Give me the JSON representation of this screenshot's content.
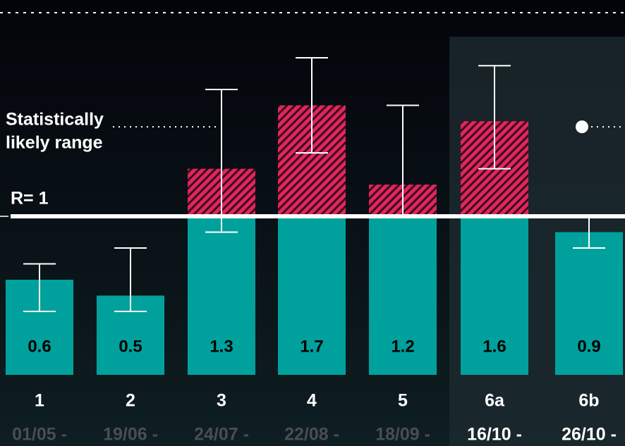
{
  "chart_data": {
    "type": "bar",
    "categories": [
      "1",
      "2",
      "3",
      "4",
      "5",
      "6a",
      "6b"
    ],
    "dates": [
      "01/05 -",
      "19/06 -",
      "24/07 -",
      "22/08 -",
      "18/09 -",
      "16/10 -",
      "26/10 -"
    ],
    "values": [
      0.6,
      0.5,
      1.3,
      1.7,
      1.2,
      1.6,
      0.9
    ],
    "ci_low": [
      0.4,
      0.4,
      0.9,
      1.4,
      1.0,
      1.3,
      0.8
    ],
    "ci_high": [
      0.7,
      0.8,
      1.8,
      2.0,
      1.7,
      1.95,
      1.0
    ],
    "color": "#00a19c",
    "above_color": "#e0265a",
    "ylim": [
      0,
      2.4
    ],
    "reference_line": {
      "value": 1,
      "label": "R= 1"
    },
    "annotation": [
      "Statistically",
      "likely range"
    ],
    "highlight": [
      5,
      6
    ]
  }
}
